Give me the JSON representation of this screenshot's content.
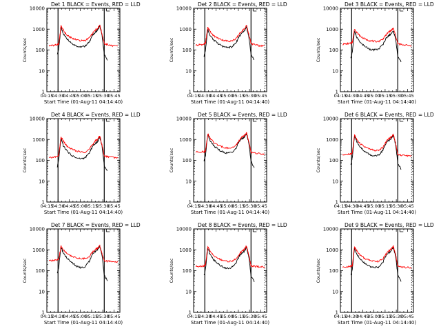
{
  "figure": {
    "xlabel": "Start Time (01-Aug-11 04:14:40)",
    "ylabel": "Counts/sec",
    "x_ticks": [
      "04:15",
      "04:30",
      "04:45",
      "05:00",
      "05:15",
      "05:30",
      "05:45"
    ],
    "y_ticks": [
      "1",
      "10",
      "100",
      "1000",
      "10000"
    ]
  },
  "colors": {
    "events": "#000000",
    "lld": "#ff0000"
  },
  "chart_data": [
    {
      "type": "line",
      "panel": 1,
      "title": "Det 1   BLACK = Events, RED = LLD",
      "xlabel": "Start Time (01-Aug-11 04:14:40)",
      "ylabel": "Counts/sec",
      "x_ticks": [
        "04:15",
        "04:30",
        "04:45",
        "05:00",
        "05:15",
        "05:30",
        "05:45"
      ],
      "xlim": [
        "04:15",
        "05:53"
      ],
      "ylim": [
        1,
        10000
      ],
      "ylog": true,
      "x": [
        "04:18",
        "04:24",
        "04:29",
        "04:31",
        "04:34",
        "04:37",
        "04:42",
        "04:48",
        "04:54",
        "05:00",
        "05:06",
        "05:12",
        "05:16",
        "05:20",
        "05:23",
        "05:26",
        "05:29",
        "05:32",
        "05:37",
        "05:43",
        "05:50"
      ],
      "vlines": [
        "04:30",
        "05:32"
      ],
      "series": [
        {
          "name": "BLACK = Events",
          "values": [
            null,
            null,
            60,
            120,
            1200,
            600,
            350,
            220,
            160,
            140,
            150,
            250,
            500,
            700,
            900,
            1400,
            500,
            60,
            30,
            null,
            null
          ]
        },
        {
          "name": "RED = LLD",
          "values": [
            160,
            170,
            180,
            200,
            1400,
            900,
            500,
            380,
            320,
            280,
            280,
            380,
            600,
            900,
            1100,
            1600,
            600,
            200,
            180,
            160,
            150
          ]
        }
      ]
    },
    {
      "type": "line",
      "panel": 2,
      "title": "Det 2   BLACK = Events, RED = LLD",
      "xlabel": "Start Time (01-Aug-11 04:14:40)",
      "ylabel": "Counts/sec",
      "x_ticks": [
        "04:15",
        "04:30",
        "04:45",
        "05:00",
        "05:15",
        "05:30",
        "05:45"
      ],
      "xlim": [
        "04:15",
        "05:53"
      ],
      "ylim": [
        1,
        10000
      ],
      "ylog": true,
      "x": [
        "04:18",
        "04:24",
        "04:29",
        "04:31",
        "04:34",
        "04:37",
        "04:42",
        "04:48",
        "04:54",
        "05:00",
        "05:06",
        "05:12",
        "05:16",
        "05:20",
        "05:23",
        "05:26",
        "05:29",
        "05:32",
        "05:37",
        "05:43",
        "05:50"
      ],
      "vlines": [
        "04:30",
        "05:32"
      ],
      "series": [
        {
          "name": "BLACK = Events",
          "values": [
            null,
            null,
            50,
            100,
            1000,
            500,
            300,
            200,
            150,
            130,
            140,
            220,
            450,
            650,
            800,
            1200,
            450,
            60,
            30,
            null,
            null
          ]
        },
        {
          "name": "RED = LLD",
          "values": [
            170,
            180,
            190,
            220,
            1200,
            800,
            480,
            360,
            300,
            270,
            270,
            350,
            560,
            850,
            1000,
            1500,
            580,
            200,
            180,
            160,
            150
          ]
        }
      ]
    },
    {
      "type": "line",
      "panel": 3,
      "title": "Det 3   BLACK = Events, RED = LLD",
      "xlabel": "Start Time (01-Aug-11 04:14:40)",
      "ylabel": "Counts/sec",
      "x_ticks": [
        "04:15",
        "04:30",
        "04:45",
        "05:00",
        "05:15",
        "05:30",
        "05:45"
      ],
      "xlim": [
        "04:15",
        "05:53"
      ],
      "ylim": [
        1,
        10000
      ],
      "ylog": true,
      "x": [
        "04:18",
        "04:24",
        "04:29",
        "04:31",
        "04:34",
        "04:37",
        "04:42",
        "04:48",
        "04:54",
        "05:00",
        "05:06",
        "05:12",
        "05:16",
        "05:20",
        "05:23",
        "05:26",
        "05:29",
        "05:32",
        "05:37",
        "05:43",
        "05:50"
      ],
      "vlines": [
        "04:30",
        "05:32"
      ],
      "series": [
        {
          "name": "BLACK = Events",
          "values": [
            null,
            null,
            40,
            80,
            800,
            400,
            220,
            150,
            110,
            100,
            110,
            180,
            350,
            500,
            600,
            800,
            350,
            50,
            25,
            null,
            null
          ]
        },
        {
          "name": "RED = LLD",
          "values": [
            190,
            200,
            210,
            240,
            1000,
            700,
            450,
            330,
            280,
            260,
            260,
            330,
            520,
            750,
            850,
            1100,
            500,
            200,
            180,
            170,
            160
          ]
        }
      ]
    },
    {
      "type": "line",
      "panel": 4,
      "title": "Det 4   BLACK = Events, RED = LLD",
      "xlabel": "Start Time (01-Aug-11 04:14:40)",
      "ylabel": "Counts/sec",
      "x_ticks": [
        "04:15",
        "04:30",
        "04:45",
        "05:00",
        "05:15",
        "05:30",
        "05:45"
      ],
      "xlim": [
        "04:15",
        "05:53"
      ],
      "ylim": [
        1,
        10000
      ],
      "ylog": true,
      "x": [
        "04:18",
        "04:24",
        "04:29",
        "04:31",
        "04:34",
        "04:37",
        "04:42",
        "04:48",
        "04:54",
        "05:00",
        "05:06",
        "05:12",
        "05:16",
        "05:20",
        "05:23",
        "05:26",
        "05:29",
        "05:32",
        "05:37",
        "05:43",
        "05:50"
      ],
      "vlines": [
        "04:30",
        "05:32"
      ],
      "series": [
        {
          "name": "BLACK = Events",
          "values": [
            null,
            null,
            50,
            110,
            1100,
            500,
            280,
            180,
            130,
            120,
            130,
            220,
            450,
            650,
            800,
            1300,
            480,
            55,
            30,
            null,
            null
          ]
        },
        {
          "name": "RED = LLD",
          "values": [
            130,
            140,
            150,
            180,
            1300,
            850,
            470,
            350,
            290,
            250,
            250,
            340,
            560,
            850,
            1000,
            1500,
            560,
            160,
            150,
            140,
            130
          ]
        }
      ]
    },
    {
      "type": "line",
      "panel": 5,
      "title": "Det 5   BLACK = Events, RED = LLD",
      "xlabel": "Start Time (01-Aug-11 04:14:40)",
      "ylabel": "Counts/sec",
      "x_ticks": [
        "04:15",
        "04:30",
        "04:45",
        "05:00",
        "05:15",
        "05:30",
        "05:45"
      ],
      "xlim": [
        "04:15",
        "05:53"
      ],
      "ylim": [
        1,
        10000
      ],
      "ylog": true,
      "x": [
        "04:18",
        "04:24",
        "04:29",
        "04:31",
        "04:34",
        "04:37",
        "04:42",
        "04:48",
        "04:54",
        "05:00",
        "05:06",
        "05:12",
        "05:16",
        "05:20",
        "05:23",
        "05:26",
        "05:29",
        "05:32",
        "05:37",
        "05:43",
        "05:50"
      ],
      "vlines": [
        "04:30",
        "05:32"
      ],
      "series": [
        {
          "name": "BLACK = Events",
          "values": [
            null,
            null,
            90,
            180,
            1700,
            900,
            500,
            330,
            250,
            220,
            240,
            380,
            800,
            1100,
            1300,
            1900,
            700,
            90,
            40,
            null,
            null
          ]
        },
        {
          "name": "RED = LLD",
          "values": [
            250,
            255,
            260,
            290,
            1900,
            1200,
            700,
            520,
            430,
            390,
            390,
            520,
            900,
            1300,
            1500,
            2100,
            800,
            240,
            220,
            210,
            200
          ]
        }
      ]
    },
    {
      "type": "line",
      "panel": 6,
      "title": "Det 6   BLACK = Events, RED = LLD",
      "xlabel": "Start Time (01-Aug-11 04:14:40)",
      "ylabel": "Counts/sec",
      "x_ticks": [
        "04:15",
        "04:30",
        "04:45",
        "05:00",
        "05:15",
        "05:30",
        "05:45"
      ],
      "xlim": [
        "04:15",
        "05:53"
      ],
      "ylim": [
        1,
        10000
      ],
      "ylog": true,
      "x": [
        "04:18",
        "04:24",
        "04:29",
        "04:31",
        "04:34",
        "04:37",
        "04:42",
        "04:48",
        "04:54",
        "05:00",
        "05:06",
        "05:12",
        "05:16",
        "05:20",
        "05:23",
        "05:26",
        "05:29",
        "05:32",
        "05:37",
        "05:43",
        "05:50"
      ],
      "vlines": [
        "04:30",
        "05:32"
      ],
      "series": [
        {
          "name": "BLACK = Events",
          "values": [
            null,
            null,
            60,
            130,
            1500,
            800,
            420,
            260,
            190,
            160,
            170,
            300,
            650,
            900,
            1100,
            1600,
            600,
            70,
            35,
            null,
            null
          ]
        },
        {
          "name": "RED = LLD",
          "values": [
            180,
            190,
            200,
            230,
            1700,
            1000,
            600,
            430,
            350,
            300,
            300,
            420,
            750,
            1100,
            1300,
            1800,
            700,
            190,
            175,
            170,
            160
          ]
        }
      ]
    },
    {
      "type": "line",
      "panel": 7,
      "title": "Det 7   BLACK = Events, RED = LLD",
      "xlabel": "Start Time (01-Aug-11 04:14:40)",
      "ylabel": "Counts/sec",
      "x_ticks": [
        "04:15",
        "04:30",
        "04:45",
        "05:00",
        "05:15",
        "05:30",
        "05:45"
      ],
      "xlim": [
        "04:15",
        "05:53"
      ],
      "ylim": [
        1,
        10000
      ],
      "ylog": true,
      "x": [
        "04:18",
        "04:24",
        "04:29",
        "04:31",
        "04:34",
        "04:37",
        "04:42",
        "04:48",
        "04:54",
        "05:00",
        "05:06",
        "05:12",
        "05:16",
        "05:20",
        "05:23",
        "05:26",
        "05:29",
        "05:32",
        "05:37",
        "05:43",
        "05:50"
      ],
      "vlines": [
        "04:30",
        "05:32"
      ],
      "series": [
        {
          "name": "BLACK = Events",
          "values": [
            null,
            null,
            70,
            150,
            1400,
            700,
            400,
            260,
            170,
            140,
            150,
            280,
            600,
            850,
            1000,
            1500,
            550,
            60,
            30,
            null,
            null
          ]
        },
        {
          "name": "RED = LLD",
          "values": [
            300,
            310,
            320,
            350,
            1500,
            1000,
            650,
            500,
            420,
            380,
            380,
            480,
            750,
            1050,
            1200,
            1600,
            650,
            300,
            280,
            270,
            260
          ]
        }
      ]
    },
    {
      "type": "line",
      "panel": 8,
      "title": "Det 8   BLACK = Events, RED = LLD",
      "xlabel": "Start Time (01-Aug-11 04:14:40)",
      "ylabel": "Counts/sec",
      "x_ticks": [
        "04:15",
        "04:30",
        "04:45",
        "05:00",
        "05:15",
        "05:30",
        "05:45"
      ],
      "xlim": [
        "04:15",
        "05:53"
      ],
      "ylim": [
        1,
        10000
      ],
      "ylog": true,
      "x": [
        "04:18",
        "04:24",
        "04:29",
        "04:31",
        "04:34",
        "04:37",
        "04:42",
        "04:48",
        "04:54",
        "05:00",
        "05:06",
        "05:12",
        "05:16",
        "05:20",
        "05:23",
        "05:26",
        "05:29",
        "05:32",
        "05:37",
        "05:43",
        "05:50"
      ],
      "vlines": [
        "04:30",
        "05:32"
      ],
      "series": [
        {
          "name": "BLACK = Events",
          "values": [
            null,
            null,
            60,
            120,
            1200,
            600,
            330,
            210,
            150,
            130,
            140,
            240,
            500,
            700,
            850,
            1300,
            480,
            55,
            28,
            null,
            null
          ]
        },
        {
          "name": "RED = LLD",
          "values": [
            160,
            165,
            170,
            200,
            1400,
            900,
            520,
            380,
            320,
            280,
            280,
            370,
            600,
            900,
            1050,
            1500,
            600,
            170,
            160,
            155,
            150
          ]
        }
      ]
    },
    {
      "type": "line",
      "panel": 9,
      "title": "Det 9   BLACK = Events, RED = LLD",
      "xlabel": "Start Time (01-Aug-11 04:14:40)",
      "ylabel": "Counts/sec",
      "x_ticks": [
        "04:15",
        "04:30",
        "04:45",
        "05:00",
        "05:15",
        "05:30",
        "05:45"
      ],
      "xlim": [
        "04:15",
        "05:53"
      ],
      "ylim": [
        1,
        10000
      ],
      "ylog": true,
      "x": [
        "04:18",
        "04:24",
        "04:29",
        "04:31",
        "04:34",
        "04:37",
        "04:42",
        "04:48",
        "04:54",
        "05:00",
        "05:06",
        "05:12",
        "05:16",
        "05:20",
        "05:23",
        "05:26",
        "05:29",
        "05:32",
        "05:37",
        "05:43",
        "05:50"
      ],
      "vlines": [
        "04:30",
        "05:32"
      ],
      "series": [
        {
          "name": "BLACK = Events",
          "values": [
            null,
            null,
            60,
            120,
            1200,
            600,
            350,
            220,
            160,
            140,
            150,
            250,
            520,
            720,
            900,
            1300,
            500,
            60,
            30,
            null,
            null
          ]
        },
        {
          "name": "RED = LLD",
          "values": [
            150,
            155,
            160,
            190,
            1400,
            900,
            520,
            380,
            320,
            280,
            280,
            370,
            600,
            900,
            1050,
            1500,
            600,
            160,
            150,
            145,
            140
          ]
        }
      ]
    }
  ]
}
